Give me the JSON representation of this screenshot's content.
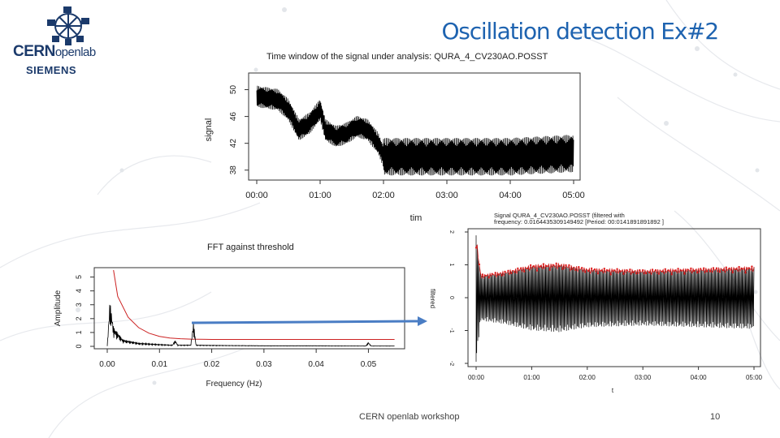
{
  "slide": {
    "title": "Oscillation detection Ex#2",
    "footer": "CERN openlab workshop",
    "page_number": "10"
  },
  "logo": {
    "cern_bold": "CERN",
    "cern_light": "openlab",
    "siemens": "SIEMENS"
  },
  "chart_data": [
    {
      "type": "line",
      "title": "Time window of the signal under analysis: QURA_4_CV230AO.POSST",
      "xlabel": "tim",
      "ylabel": "signal",
      "x_ticks": [
        "00:00",
        "01:00",
        "02:00",
        "03:00",
        "04:00",
        "05:00"
      ],
      "y_ticks": [
        "38",
        "42",
        "46",
        "50"
      ],
      "ylim": [
        37,
        52
      ],
      "series": [
        {
          "color": "#000000",
          "x": [
            "00:00",
            "00:20",
            "00:30",
            "00:40",
            "00:50",
            "01:00",
            "01:05",
            "01:15",
            "01:25",
            "01:35",
            "01:45",
            "01:55",
            "02:00",
            "02:10",
            "03:00",
            "04:00",
            "05:00"
          ],
          "values": [
            49,
            48.5,
            47,
            44,
            45,
            47,
            44,
            43,
            43.5,
            44.5,
            44,
            42,
            40,
            40,
            40,
            40,
            40.5
          ]
        }
      ]
    },
    {
      "type": "line",
      "title": "FFT against threshold",
      "xlabel": "Frequency (Hz)",
      "ylabel": "Amplitude",
      "x_ticks": [
        "0.00",
        "0.01",
        "0.02",
        "0.03",
        "0.04",
        "0.05"
      ],
      "y_ticks": [
        "0",
        "1",
        "2",
        "3",
        "4",
        "5"
      ],
      "xlim": [
        0,
        0.056
      ],
      "ylim": [
        0,
        5.5
      ],
      "series": [
        {
          "color": "#000000",
          "x": [
            0.0,
            0.0005,
            0.0012,
            0.003,
            0.006,
            0.01,
            0.0125,
            0.013,
            0.0135,
            0.016,
            0.0165,
            0.017,
            0.02,
            0.03,
            0.04,
            0.0495,
            0.05,
            0.0505,
            0.055
          ],
          "values": [
            0.05,
            3.3,
            1.4,
            0.5,
            0.25,
            0.15,
            0.1,
            0.45,
            0.1,
            0.1,
            1.8,
            0.1,
            0.08,
            0.05,
            0.05,
            0.03,
            0.3,
            0.03,
            0.03
          ]
        },
        {
          "color": "#cc2222",
          "x": [
            0.0012,
            0.002,
            0.004,
            0.006,
            0.008,
            0.01,
            0.012,
            0.014,
            0.016,
            0.02,
            0.03,
            0.04,
            0.055
          ],
          "values": [
            5.5,
            3.6,
            2.1,
            1.35,
            0.95,
            0.72,
            0.6,
            0.55,
            0.52,
            0.5,
            0.5,
            0.5,
            0.5
          ]
        }
      ]
    },
    {
      "type": "line",
      "title": "Signal QURA_4_CV230AO.POSST (filtered with frequency: 0.0164435309149492 [Period: 00:0141891891892 ]",
      "xlabel": "t",
      "ylabel": "filtered",
      "x_ticks": [
        "00:00",
        "01:00",
        "02:00",
        "03:00",
        "04:00",
        "05:00"
      ],
      "y_ticks": [
        "-2",
        "-1",
        "0",
        "1",
        "2"
      ],
      "ylim": [
        -2,
        2
      ],
      "series": [
        {
          "color": "#000000",
          "x": [
            "00:00",
            "00:05",
            "00:30",
            "01:00",
            "01:30",
            "02:00",
            "03:00",
            "04:00",
            "05:00"
          ],
          "values": [
            1.9,
            0.7,
            0.8,
            1.0,
            1.05,
            0.9,
            0.85,
            0.9,
            0.95
          ]
        },
        {
          "color": "#dd2222",
          "x": [
            "00:00",
            "00:05",
            "00:30",
            "01:00",
            "01:30",
            "02:00",
            "03:00",
            "04:00",
            "05:00"
          ],
          "values": [
            1.9,
            0.7,
            0.8,
            1.0,
            1.05,
            0.9,
            0.85,
            0.9,
            0.95
          ]
        }
      ]
    }
  ]
}
